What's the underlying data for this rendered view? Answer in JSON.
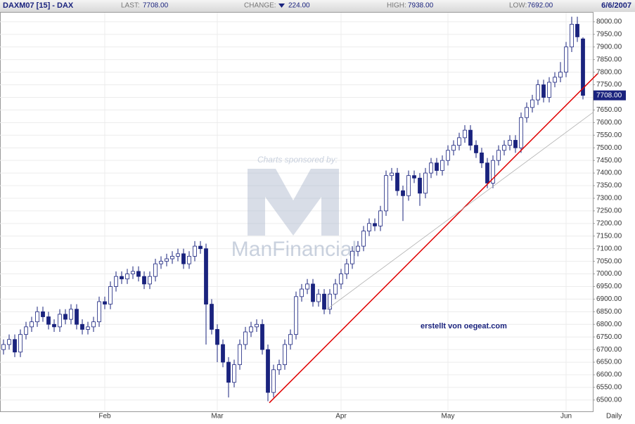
{
  "header": {
    "symbol": "DAXM07 [15] - DAX",
    "last": {
      "label": "LAST:",
      "value": "7708.00"
    },
    "change": {
      "label": "CHANGE:",
      "value": "224.00"
    },
    "high": {
      "label": "HIGH:",
      "value": "7938.00"
    },
    "low": {
      "label": "LOW:",
      "value": "7692.00"
    },
    "date": "6/6/2007"
  },
  "watermark": {
    "caption": "Charts sponsored by:",
    "brand": "ManFinancial"
  },
  "chart_data": {
    "type": "candlestick",
    "annotation": "erstellt von oegeat.com",
    "x_axis_label": "Daily",
    "categories": [
      null,
      null,
      null,
      null,
      null,
      null,
      null,
      null,
      null,
      null,
      null,
      null,
      null,
      null,
      null,
      null,
      null,
      null,
      "Feb",
      null,
      null,
      null,
      null,
      null,
      null,
      null,
      null,
      null,
      null,
      null,
      null,
      null,
      null,
      null,
      null,
      null,
      null,
      null,
      "Mar",
      null,
      null,
      null,
      null,
      null,
      null,
      null,
      null,
      null,
      null,
      null,
      null,
      null,
      null,
      null,
      null,
      null,
      null,
      null,
      null,
      null,
      "Apr",
      null,
      null,
      null,
      null,
      null,
      null,
      null,
      null,
      null,
      null,
      null,
      null,
      null,
      null,
      null,
      null,
      null,
      null,
      "May",
      null,
      null,
      null,
      null,
      null,
      null,
      null,
      null,
      null,
      null,
      null,
      null,
      null,
      null,
      null,
      null,
      null,
      null,
      null,
      null,
      "Jun",
      null,
      null,
      null
    ],
    "open": [
      6700,
      6720,
      6740,
      6690,
      6760,
      6790,
      6810,
      6850,
      6830,
      6800,
      6790,
      6840,
      6820,
      6860,
      6800,
      6780,
      6790,
      6810,
      6890,
      6880,
      6950,
      6990,
      6980,
      7000,
      7010,
      6990,
      6960,
      6990,
      7040,
      7050,
      7060,
      7070,
      7080,
      7040,
      7070,
      7110,
      7100,
      6880,
      6780,
      6720,
      6650,
      6570,
      6640,
      6720,
      6770,
      6790,
      6800,
      6700,
      6530,
      6620,
      6640,
      6720,
      6760,
      6910,
      6940,
      6960,
      6890,
      6920,
      6860,
      6920,
      6960,
      7000,
      7040,
      7090,
      7110,
      7170,
      7200,
      7190,
      7250,
      7390,
      7400,
      7330,
      7310,
      7390,
      7380,
      7320,
      7400,
      7440,
      7410,
      7450,
      7490,
      7510,
      7540,
      7570,
      7510,
      7480,
      7440,
      7360,
      7450,
      7490,
      7510,
      7530,
      7500,
      7620,
      7660,
      7690,
      7750,
      7700,
      7760,
      7780,
      7800,
      7900,
      7990,
      7932
    ],
    "high": [
      6740,
      6760,
      6760,
      6780,
      6810,
      6830,
      6870,
      6870,
      6850,
      6820,
      6860,
      6860,
      6880,
      6880,
      6820,
      6810,
      6830,
      6910,
      6910,
      6970,
      7010,
      7010,
      7020,
      7030,
      7030,
      7010,
      7010,
      7060,
      7070,
      7080,
      7090,
      7100,
      7100,
      7090,
      7130,
      7130,
      7120,
      6900,
      6800,
      6740,
      6670,
      6660,
      6740,
      6790,
      6810,
      6820,
      6820,
      6720,
      6640,
      6660,
      6740,
      6780,
      6930,
      6960,
      6980,
      6980,
      6940,
      6940,
      6940,
      6980,
      7020,
      7060,
      7110,
      7130,
      7190,
      7220,
      7220,
      7270,
      7410,
      7420,
      7420,
      7350,
      7410,
      7410,
      7400,
      7420,
      7460,
      7460,
      7470,
      7510,
      7530,
      7560,
      7590,
      7590,
      7530,
      7500,
      7460,
      7470,
      7510,
      7530,
      7550,
      7550,
      7640,
      7680,
      7710,
      7770,
      7770,
      7780,
      7800,
      7840,
      7920,
      8020,
      8020,
      7938
    ],
    "low": [
      6680,
      6700,
      6670,
      6670,
      6740,
      6770,
      6790,
      6810,
      6780,
      6770,
      6770,
      6800,
      6800,
      6780,
      6760,
      6760,
      6770,
      6790,
      6860,
      6860,
      6930,
      6960,
      6960,
      6980,
      6970,
      6940,
      6940,
      6970,
      7020,
      7030,
      7040,
      7050,
      7020,
      7020,
      7050,
      7080,
      6720,
      6760,
      6650,
      6630,
      6510,
      6550,
      6620,
      6700,
      6750,
      6770,
      6680,
      6495,
      6510,
      6600,
      6620,
      6700,
      6740,
      6890,
      6920,
      6870,
      6870,
      6840,
      6840,
      6900,
      6940,
      6980,
      7020,
      7070,
      7090,
      7150,
      7170,
      7170,
      7230,
      7370,
      7310,
      7210,
      7290,
      7360,
      7270,
      7300,
      7380,
      7390,
      7390,
      7430,
      7470,
      7490,
      7520,
      7490,
      7460,
      7420,
      7340,
      7340,
      7430,
      7470,
      7490,
      7480,
      7480,
      7600,
      7640,
      7670,
      7680,
      7680,
      7740,
      7760,
      7780,
      7880,
      7920,
      7692
    ],
    "close": [
      6720,
      6740,
      6690,
      6760,
      6790,
      6810,
      6850,
      6830,
      6800,
      6790,
      6840,
      6820,
      6860,
      6800,
      6780,
      6790,
      6810,
      6890,
      6880,
      6950,
      6990,
      6980,
      7000,
      7010,
      6990,
      6960,
      6990,
      7040,
      7050,
      7060,
      7070,
      7080,
      7040,
      7070,
      7110,
      7100,
      6880,
      6780,
      6720,
      6650,
      6570,
      6640,
      6720,
      6770,
      6790,
      6800,
      6700,
      6530,
      6620,
      6640,
      6720,
      6760,
      6910,
      6940,
      6960,
      6890,
      6920,
      6860,
      6920,
      6960,
      7000,
      7040,
      7090,
      7110,
      7170,
      7200,
      7190,
      7250,
      7390,
      7400,
      7330,
      7310,
      7390,
      7380,
      7320,
      7400,
      7440,
      7410,
      7450,
      7490,
      7510,
      7540,
      7570,
      7510,
      7480,
      7440,
      7360,
      7450,
      7490,
      7510,
      7530,
      7500,
      7620,
      7660,
      7690,
      7750,
      7700,
      7760,
      7780,
      7800,
      7900,
      7990,
      7940,
      7708
    ],
    "up_color": "#ffffff",
    "down_color": "#1a237e",
    "edge_color": "#1a237e",
    "trendlines": [
      {
        "x": [
          47.25,
          105.6
        ],
        "y": [
          6489,
          7794
        ],
        "color": "#e00000"
      },
      {
        "x": [
          57.5,
          104.75
        ],
        "y": [
          6860,
          7640
        ],
        "color": "#b0b0b0"
      }
    ],
    "xlim": [
      -0.625,
      104.75
    ],
    "ylim": [
      6455,
      8036
    ],
    "grid": true,
    "yticks": [
      {
        "value": 6500,
        "label": "6500.00"
      },
      {
        "value": 6550,
        "label": "6550.00"
      },
      {
        "value": 6600,
        "label": "6600.00"
      },
      {
        "value": 6650,
        "label": "6650.00"
      },
      {
        "value": 6700,
        "label": "6700.00"
      },
      {
        "value": 6750,
        "label": "6750.00"
      },
      {
        "value": 6800,
        "label": "6800.00"
      },
      {
        "value": 6850,
        "label": "6850.00"
      },
      {
        "value": 6900,
        "label": "6900.00"
      },
      {
        "value": 6950,
        "label": "6950.00"
      },
      {
        "value": 7000,
        "label": "7000.00"
      },
      {
        "value": 7050,
        "label": "7050.00"
      },
      {
        "value": 7100,
        "label": "7100.00"
      },
      {
        "value": 7150,
        "label": "7150.00"
      },
      {
        "value": 7200,
        "label": "7200.00"
      },
      {
        "value": 7250,
        "label": "7250.00"
      },
      {
        "value": 7300,
        "label": "7300.00"
      },
      {
        "value": 7350,
        "label": "7350.00"
      },
      {
        "value": 7400,
        "label": "7400.00"
      },
      {
        "value": 7450,
        "label": "7450.00"
      },
      {
        "value": 7500,
        "label": "7500.00"
      },
      {
        "value": 7550,
        "label": "7550.00"
      },
      {
        "value": 7600,
        "label": "7600.00"
      },
      {
        "value": 7650,
        "label": "7650.00"
      },
      {
        "value": 7700,
        "label": "7700.00"
      },
      {
        "value": 7750,
        "label": "7750.00"
      },
      {
        "value": 7800,
        "label": "7800.00"
      },
      {
        "value": 7850,
        "label": "7850.00"
      },
      {
        "value": 7900,
        "label": "7900.00"
      },
      {
        "value": 7950,
        "label": "7950.00"
      },
      {
        "value": 8000,
        "label": "8000.00"
      }
    ]
  }
}
